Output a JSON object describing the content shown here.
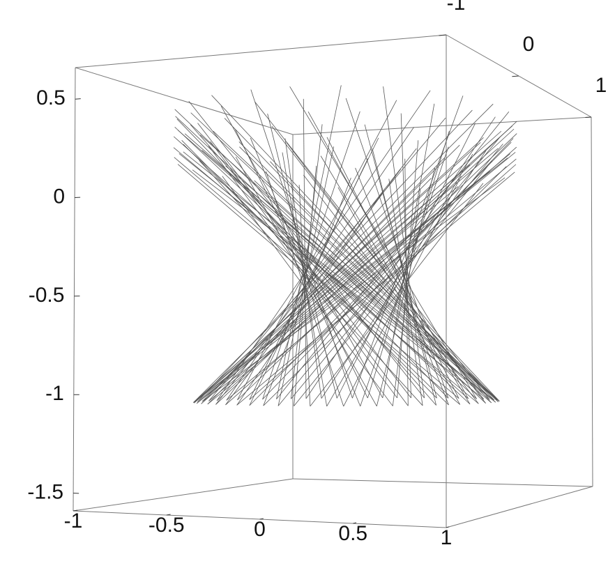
{
  "chart_data": {
    "type": "line3d",
    "xlim": [
      -1,
      1
    ],
    "xticks": [
      -1,
      -0.5,
      0,
      0.5,
      1
    ],
    "ylim": [
      -1,
      1
    ],
    "yticks": [
      -1,
      0,
      1
    ],
    "zlim": [
      -1.59,
      0.66
    ],
    "zticks": [
      0.5,
      0,
      -0.5,
      -1,
      -1.5
    ]
  }
}
